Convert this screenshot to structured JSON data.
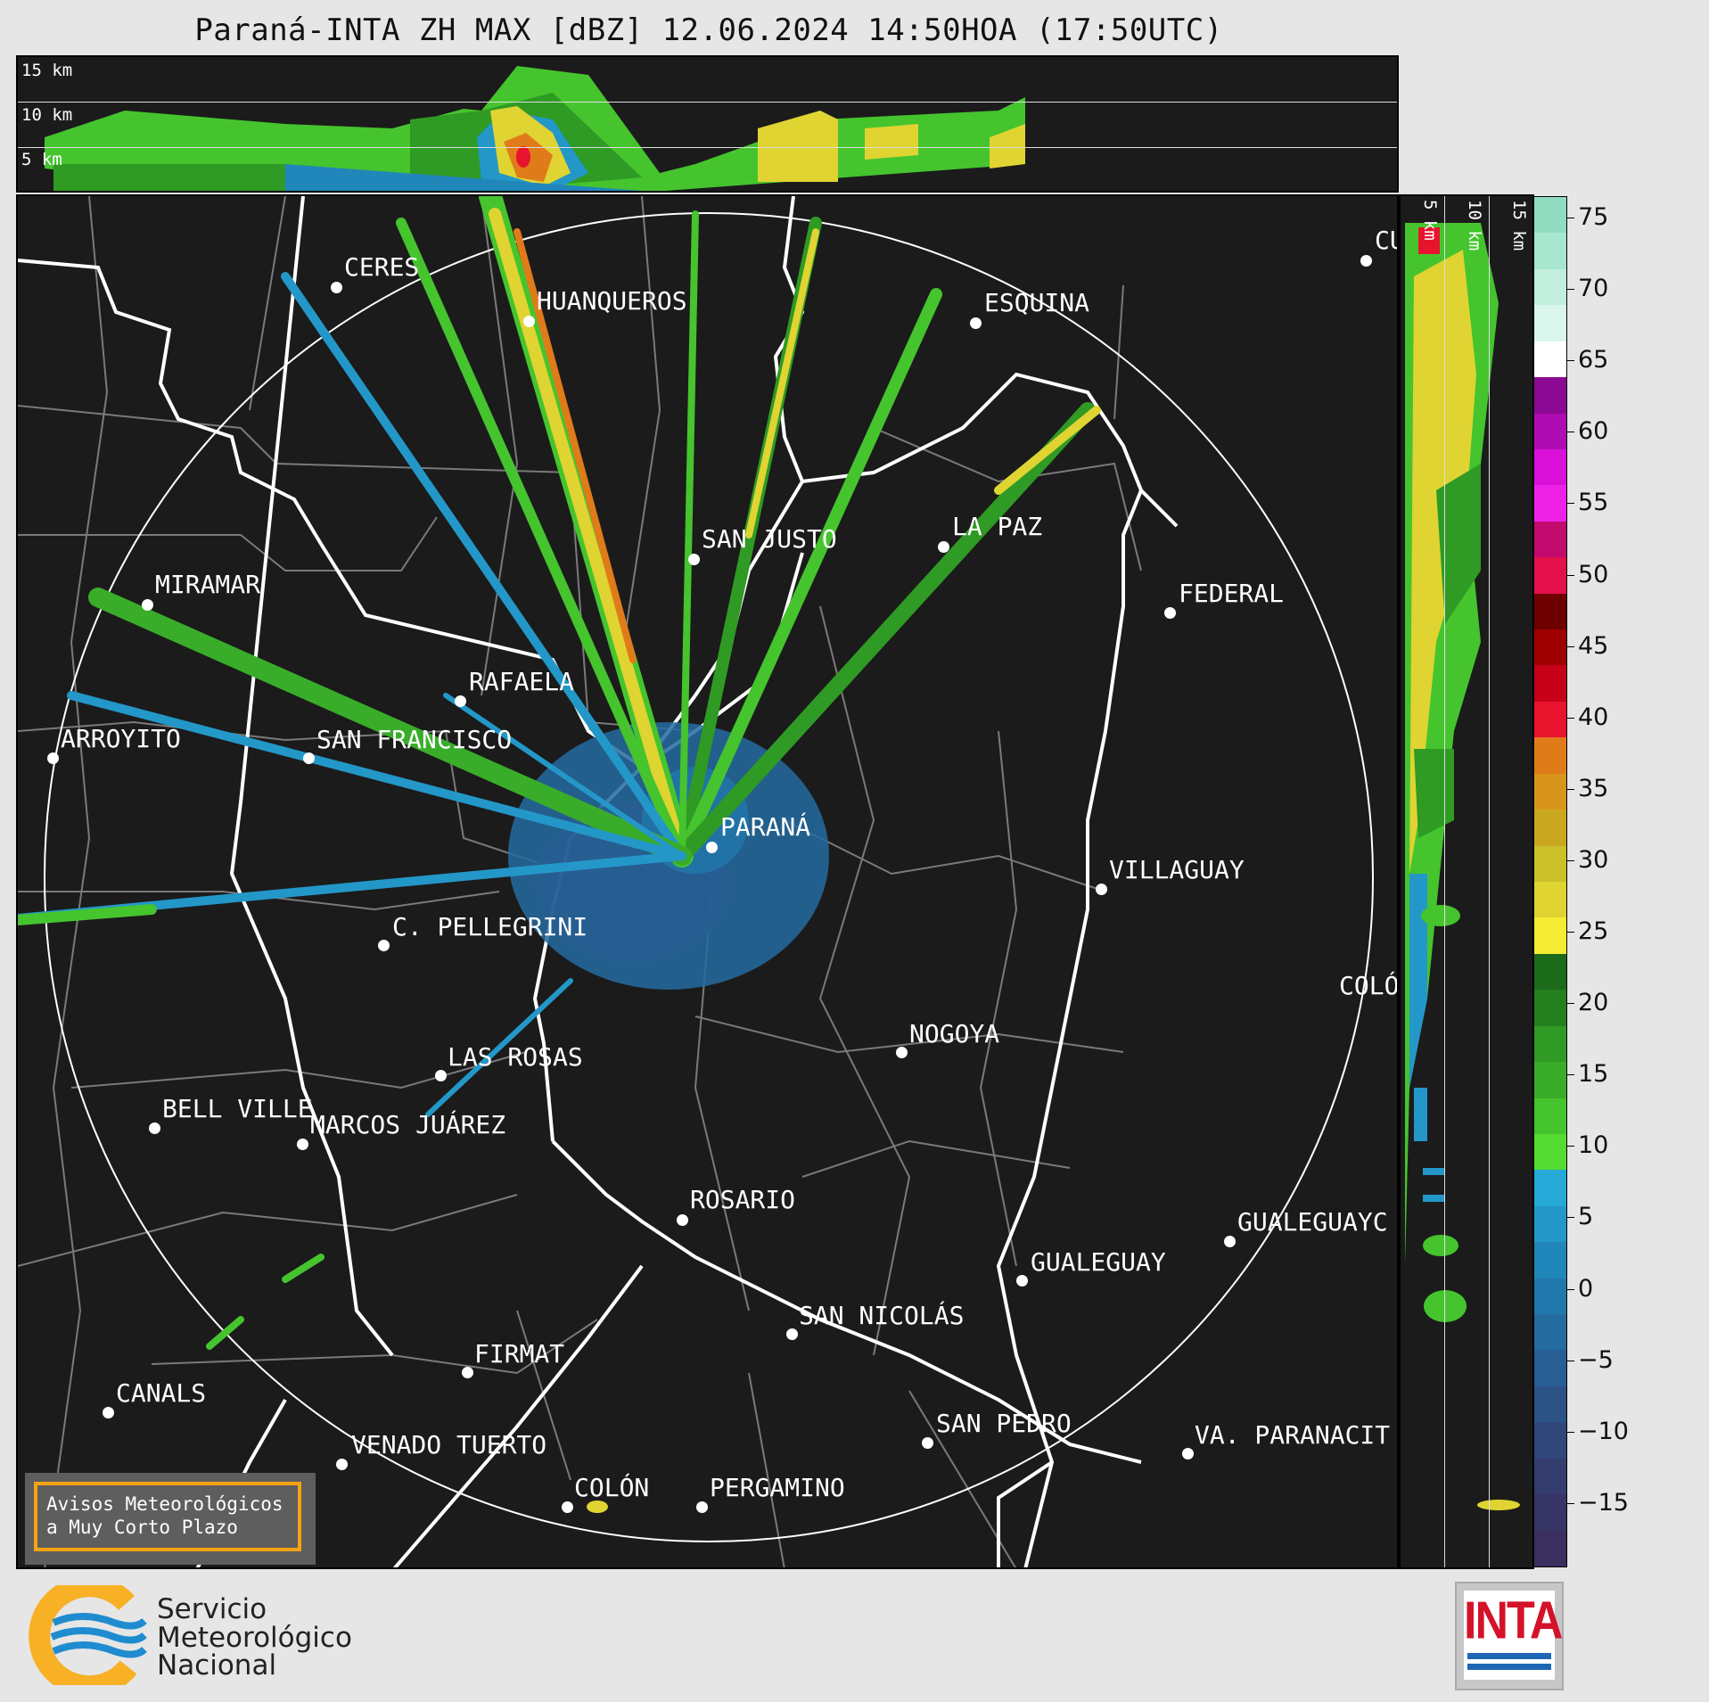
{
  "title": "Paraná-INTA ZH MAX [dBZ] 12.06.2024 14:50HOA (17:50UTC)",
  "top_profile": {
    "altitude_labels": [
      "15 km",
      "10 km",
      "5 km"
    ]
  },
  "side_profile": {
    "altitude_labels": [
      "5 km",
      "10 km",
      "15 km"
    ]
  },
  "colorbar": {
    "unit": "dBZ",
    "ticks": [
      "75",
      "70",
      "65",
      "60",
      "55",
      "50",
      "45",
      "40",
      "35",
      "30",
      "25",
      "20",
      "15",
      "10",
      "5",
      "0",
      "−5",
      "−10",
      "−15"
    ],
    "colors": [
      "#8fdcc0",
      "#a7e6cf",
      "#c1eedd",
      "#d9f5ec",
      "#ffffff",
      "#8b0a93",
      "#b00cb3",
      "#d810d8",
      "#ee22e6",
      "#c10b6e",
      "#e3104b",
      "#6e0000",
      "#9f0000",
      "#c7001a",
      "#e8142e",
      "#e07b1a",
      "#d8951c",
      "#c9a81f",
      "#c9c02a",
      "#dfd432",
      "#f5ec33",
      "#1b6b1b",
      "#24801f",
      "#2f9a24",
      "#39ad2a",
      "#45c42e",
      "#55dc32",
      "#26a9d6",
      "#2397c8",
      "#2186ba",
      "#2178ad",
      "#246ba0",
      "#285e93",
      "#2c5286",
      "#30477a",
      "#343d6e",
      "#373565",
      "#3a2f5e"
    ]
  },
  "cities": [
    {
      "name": "CERES"
    },
    {
      "name": "HUANQUEROS"
    },
    {
      "name": "ESQUINA"
    },
    {
      "name": "CU"
    },
    {
      "name": "SAN JUSTO"
    },
    {
      "name": "LA PAZ"
    },
    {
      "name": "MIRAMAR"
    },
    {
      "name": "FEDERAL"
    },
    {
      "name": "RAFAELA"
    },
    {
      "name": "ARROYITO"
    },
    {
      "name": "SAN FRANCISCO"
    },
    {
      "name": "PARANÁ"
    },
    {
      "name": "VILLAGUAY"
    },
    {
      "name": "C. PELLEGRINI"
    },
    {
      "name": "COLÓ"
    },
    {
      "name": "NOGOYA"
    },
    {
      "name": "LAS ROSAS"
    },
    {
      "name": "BELL VILLE"
    },
    {
      "name": "MARCOS JUÁREZ"
    },
    {
      "name": "ROSARIO"
    },
    {
      "name": "GUALEGUAYC"
    },
    {
      "name": "GUALEGUAY"
    },
    {
      "name": "SAN NICOLÁS"
    },
    {
      "name": "FIRMAT"
    },
    {
      "name": "CANALS"
    },
    {
      "name": "SAN PEDRO"
    },
    {
      "name": "VENADO TUERTO"
    },
    {
      "name": "VA. PARANACIT"
    },
    {
      "name": "COLÓN"
    },
    {
      "name": "PERGAMINO"
    }
  ],
  "notice": {
    "line1": "Avisos Meteorológicos",
    "line2": "a Muy Corto Plazo"
  },
  "smn_logo": {
    "line1": "Servicio",
    "line2": "Meteorológico",
    "line3": "Nacional"
  },
  "inta_logo": {
    "text": "INTA"
  }
}
